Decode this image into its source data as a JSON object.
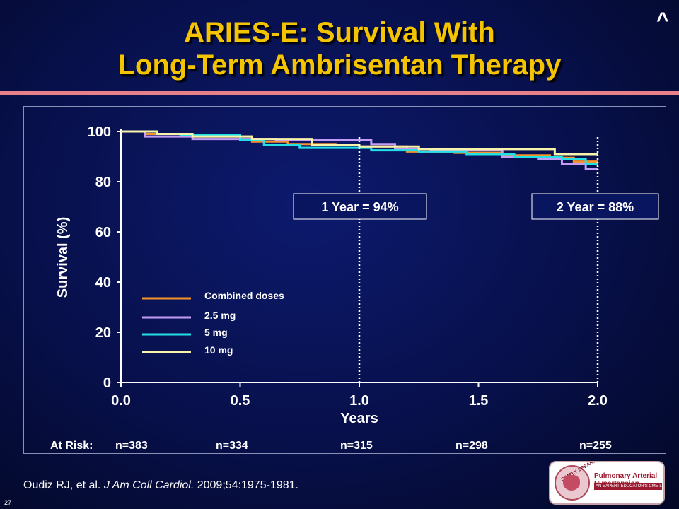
{
  "slide": {
    "title_line1": "ARIES-E: Survival With",
    "title_line2": "Long-Term Ambrisentan Therapy",
    "nav_caret": "^",
    "slide_number": "27",
    "citation": {
      "authors": "Oudiz RJ, et al.",
      "journal": "J Am Coll Cardiol.",
      "details": "2009;54:1975-1981."
    },
    "logo": {
      "seal_text": "SIMPLY SPEAKING",
      "line1": "Pulmonary Arterial Hypertension",
      "line2": "AN EXPERT EDUCATOR'S CME LECTURE SERIES"
    }
  },
  "chart_data": {
    "type": "line",
    "xlabel": "Years",
    "ylabel": "Survival (%)",
    "xlim": [
      0,
      2
    ],
    "ylim": [
      0,
      100
    ],
    "xticks": [
      "0.0",
      "0.5",
      "1.0",
      "1.5",
      "2.0"
    ],
    "yticks": [
      "0",
      "20",
      "40",
      "60",
      "80",
      "100"
    ],
    "legend_position": "lower-left",
    "series": [
      {
        "name": "Combined doses",
        "color": "#f5922a",
        "x": [
          0,
          0.1,
          0.3,
          0.55,
          0.7,
          0.9,
          1.0,
          1.2,
          1.4,
          1.6,
          1.8,
          1.9,
          2.0
        ],
        "y": [
          100,
          99,
          98,
          96,
          95,
          94.5,
          94,
          92,
          91.5,
          90.5,
          89.5,
          88,
          88
        ]
      },
      {
        "name": "2.5 mg",
        "color": "#c39cf5",
        "x": [
          0,
          0.1,
          0.3,
          0.55,
          0.65,
          1.0,
          1.05,
          1.15,
          1.3,
          1.6,
          1.75,
          1.85,
          1.95,
          2.0
        ],
        "y": [
          100,
          98,
          97,
          97,
          96.5,
          96.5,
          95,
          93,
          92.5,
          90,
          89,
          87,
          85,
          85
        ]
      },
      {
        "name": "5 mg",
        "color": "#22e0e6",
        "x": [
          0,
          0.15,
          0.25,
          0.5,
          0.6,
          0.75,
          1.0,
          1.05,
          1.25,
          1.45,
          1.65,
          1.85,
          1.95,
          2.0
        ],
        "y": [
          100,
          99,
          98.5,
          96.5,
          94.5,
          93.5,
          93.5,
          92.5,
          92,
          91,
          90,
          89,
          87,
          87
        ]
      },
      {
        "name": "10 mg",
        "color": "#f7f3a8",
        "x": [
          0,
          0.15,
          0.3,
          0.55,
          0.8,
          1.0,
          1.25,
          1.5,
          1.65,
          1.8,
          1.82,
          2.0
        ],
        "y": [
          100,
          99,
          98,
          97,
          94.5,
          94,
          93,
          93,
          93,
          93,
          91,
          91
        ]
      }
    ],
    "vlines": [
      1.0,
      2.0
    ],
    "annotations": [
      {
        "text": "1 Year = 94%",
        "x": 1.0
      },
      {
        "text": "2 Year = 88%",
        "x": 2.0
      }
    ],
    "at_risk": {
      "label": "At Risk:",
      "values": [
        "n=383",
        "n=334",
        "n=315",
        "n=298",
        "n=255"
      ]
    }
  }
}
